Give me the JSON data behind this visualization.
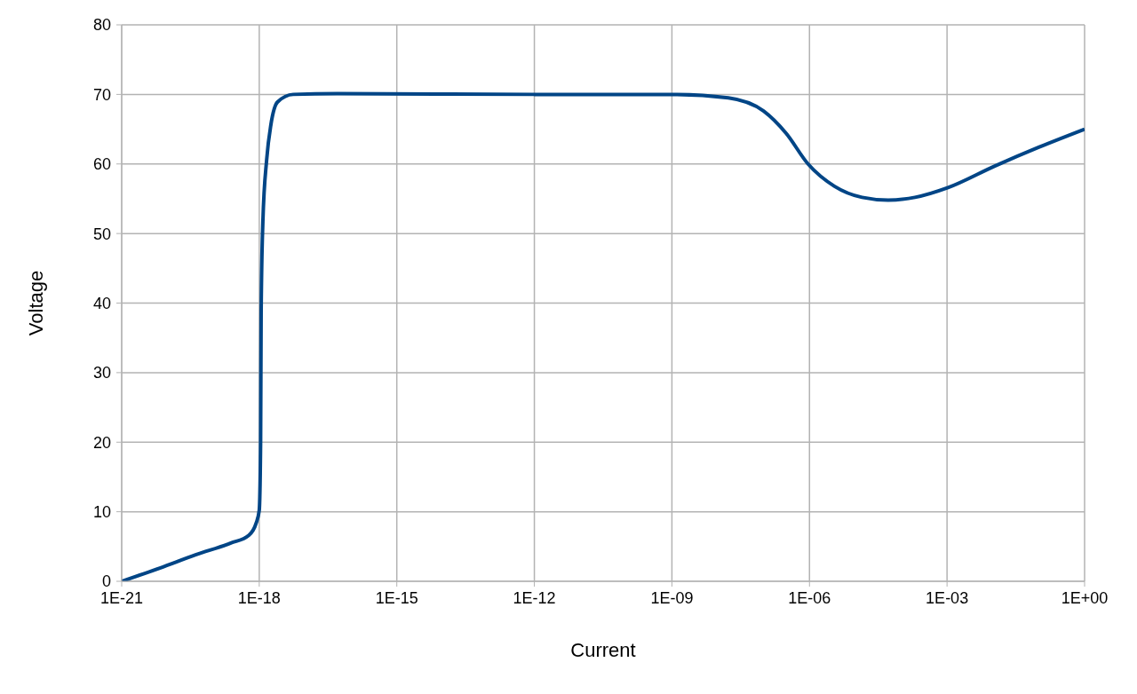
{
  "chart_data": {
    "type": "line",
    "xlabel": "Current",
    "ylabel": "Voltage",
    "log": "x",
    "x": [
      1e-21,
      6.8e-21,
      4.1e-20,
      2.4e-19,
      5.9e-19,
      8.5e-19,
      1e-18,
      1.07e-18,
      1.1e-18,
      1.2e-18,
      1.45e-18,
      1.8e-18,
      2.5e-18,
      5.5e-18,
      5e-17,
      1e-12,
      1.2e-09,
      1.7e-08,
      1e-07,
      3.1e-07,
      9.3e-07,
      3.5e-06,
      1.4e-05,
      5.2e-05,
      0.0002,
      0.00105,
      0.011,
      0.1,
      1
    ],
    "series": [
      {
        "color": "#004586",
        "values": [
          0,
          1.9,
          3.8,
          5.5,
          6.6,
          8.3,
          10.2,
          19.8,
          38.9,
          51.7,
          60.6,
          65.7,
          68.9,
          70,
          70.1,
          70,
          70,
          69.5,
          67.6,
          64.4,
          60,
          56.8,
          55.2,
          54.8,
          55.2,
          56.6,
          59.7,
          62.4,
          65
        ]
      }
    ],
    "xlim": [
      1e-21,
      1
    ],
    "xticks": [
      {
        "value": 1e-21,
        "label": "1E-21"
      },
      {
        "value": 1e-18,
        "label": "1E-18"
      },
      {
        "value": 1e-15,
        "label": "1E-15"
      },
      {
        "value": 1e-12,
        "label": "1E-12"
      },
      {
        "value": 1e-09,
        "label": "1E-09"
      },
      {
        "value": 1e-06,
        "label": "1E-06"
      },
      {
        "value": 0.001,
        "label": "1E-03"
      },
      {
        "value": 1,
        "label": "1E+00"
      }
    ],
    "ylim": [
      0,
      80
    ],
    "yticks": [
      0,
      10,
      20,
      30,
      40,
      50,
      60,
      70,
      80
    ],
    "grid": true,
    "marker": "none",
    "line_style": "solid"
  }
}
